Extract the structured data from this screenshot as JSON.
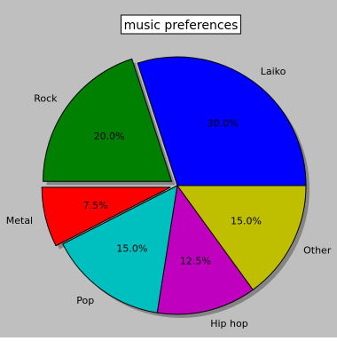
{
  "chart_data": {
    "type": "pie",
    "title": "music preferences",
    "labels": [
      "Laiko",
      "Rock",
      "Metal",
      "Pop",
      "Hip hop",
      "Other"
    ],
    "values": [
      30.0,
      20.0,
      7.5,
      15.0,
      12.5,
      15.0
    ],
    "pct_labels": [
      "30.0%",
      "20.0%",
      "7.5%",
      "15.0%",
      "12.5%",
      "15.0%"
    ],
    "colors": [
      "#0000ff",
      "#008000",
      "#ff0000",
      "#00bfbf",
      "#bf00bf",
      "#bfbf00"
    ],
    "exploded": [
      "Rock",
      "Metal"
    ],
    "shadow": true,
    "background": "#bfbfbf"
  }
}
